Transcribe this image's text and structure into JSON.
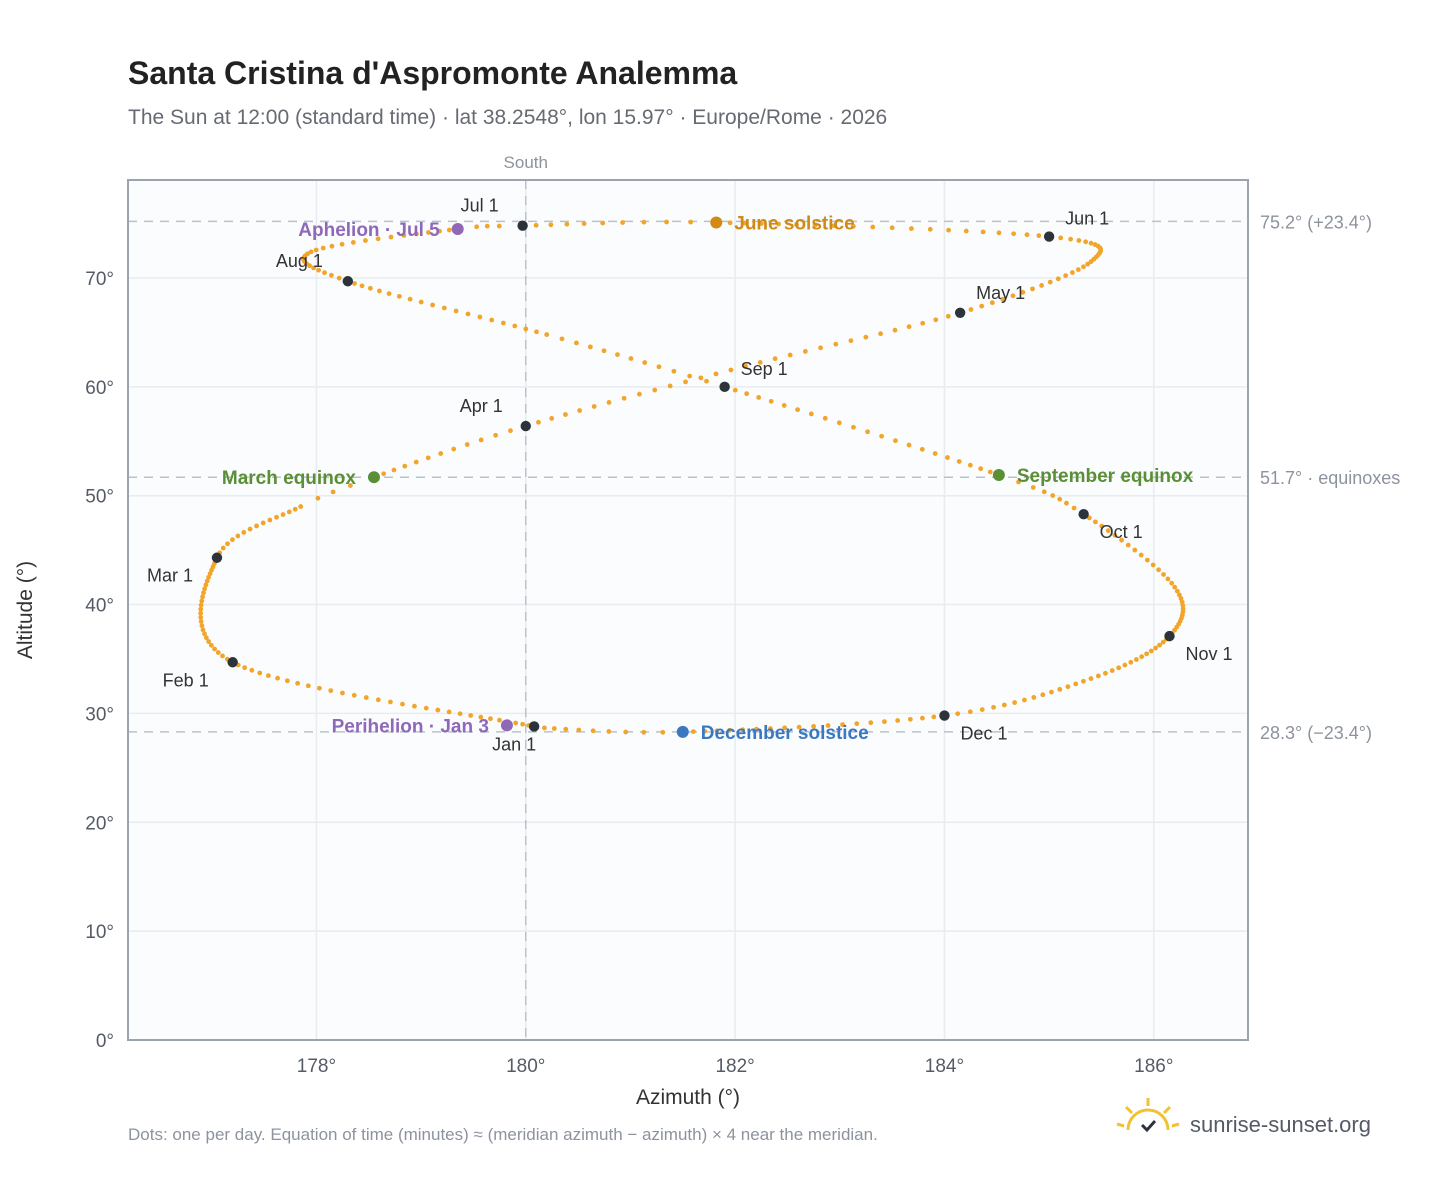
{
  "header": {
    "title": "Santa Cristina d'Aspromonte Analemma",
    "subtitle": "The Sun at 12:00 (standard time) · lat 38.2548°, lon 15.97° · Europe/Rome · 2026"
  },
  "footer": {
    "note": "Dots: one per day. Equation of time (minutes) ≈ (meridian azimuth − azimuth) × 4 near the meridian.",
    "brand": "sunrise-sunset.org",
    "brand_icon": "sun-check-icon"
  },
  "colors": {
    "path": "#f2a52a",
    "month_marker": "#2d333b",
    "solstice_june": "#d18a14",
    "solstice_december": "#3a78c2",
    "equinox": "#5a8f35",
    "apsis": "#8f68b8",
    "grid": "#e8ebef",
    "reference_line": "#b9c2cc",
    "frame": "#9aa3ae",
    "plot_bg": "#fafcfe"
  },
  "chart_data": {
    "type": "scatter",
    "xlabel": "Azimuth (°)",
    "ylabel": "Altitude (°)",
    "xlim": [
      176.2,
      186.9
    ],
    "ylim": [
      0,
      79
    ],
    "x_ticks": [
      178,
      180,
      182,
      184,
      186
    ],
    "x_tick_labels": [
      "178°",
      "180°",
      "182°",
      "184°",
      "186°"
    ],
    "y_ticks": [
      0,
      10,
      20,
      30,
      40,
      50,
      60,
      70
    ],
    "y_tick_labels": [
      "0°",
      "10°",
      "20°",
      "30°",
      "40°",
      "50°",
      "60°",
      "70°"
    ],
    "grid": true,
    "meridian": {
      "azimuth": 180,
      "label": "South"
    },
    "reference_lines": [
      {
        "altitude": 75.2,
        "label": "75.2° (+23.4°)"
      },
      {
        "altitude": 51.7,
        "label": "51.7° · equinoxes"
      },
      {
        "altitude": 28.3,
        "label": "28.3° (−23.4°)"
      }
    ],
    "path_points": [
      {
        "day": 1,
        "az": 180.08,
        "alt": 28.8
      },
      {
        "day": 32,
        "az": 177.2,
        "alt": 34.7
      },
      {
        "day": 60,
        "az": 177.05,
        "alt": 44.3
      },
      {
        "day": 75,
        "az": 177.85,
        "alt": 49.0
      },
      {
        "day": 79,
        "az": 178.55,
        "alt": 51.7
      },
      {
        "day": 91,
        "az": 180.0,
        "alt": 56.4
      },
      {
        "day": 106,
        "az": 182.1,
        "alt": 61.9
      },
      {
        "day": 121,
        "az": 184.15,
        "alt": 66.8
      },
      {
        "day": 137,
        "az": 185.4,
        "alt": 71.5
      },
      {
        "day": 152,
        "az": 185.0,
        "alt": 73.8
      },
      {
        "day": 172,
        "az": 181.82,
        "alt": 75.1
      },
      {
        "day": 182,
        "az": 179.97,
        "alt": 74.8
      },
      {
        "day": 186,
        "az": 179.35,
        "alt": 74.5
      },
      {
        "day": 200,
        "az": 177.95,
        "alt": 72.4
      },
      {
        "day": 213,
        "az": 178.3,
        "alt": 69.7
      },
      {
        "day": 232,
        "az": 180.2,
        "alt": 64.8
      },
      {
        "day": 244,
        "az": 181.9,
        "alt": 60.0
      },
      {
        "day": 266,
        "az": 184.52,
        "alt": 51.9
      },
      {
        "day": 274,
        "az": 185.33,
        "alt": 48.3
      },
      {
        "day": 290,
        "az": 186.2,
        "alt": 41.6
      },
      {
        "day": 305,
        "az": 186.15,
        "alt": 37.1
      },
      {
        "day": 320,
        "az": 185.4,
        "alt": 33.2
      },
      {
        "day": 335,
        "az": 184.0,
        "alt": 29.8
      },
      {
        "day": 355,
        "az": 181.5,
        "alt": 28.3
      },
      {
        "day": 365,
        "az": 180.1,
        "alt": 28.7
      }
    ],
    "month_markers": [
      {
        "label": "Jan 1",
        "az": 180.08,
        "alt": 28.8
      },
      {
        "label": "Feb 1",
        "az": 177.2,
        "alt": 34.7
      },
      {
        "label": "Mar 1",
        "az": 177.05,
        "alt": 44.3
      },
      {
        "label": "Apr 1",
        "az": 180.0,
        "alt": 56.4
      },
      {
        "label": "May 1",
        "az": 184.15,
        "alt": 66.8
      },
      {
        "label": "Jun 1",
        "az": 185.0,
        "alt": 73.8
      },
      {
        "label": "Jul 1",
        "az": 179.97,
        "alt": 74.8
      },
      {
        "label": "Aug 1",
        "az": 178.3,
        "alt": 69.7
      },
      {
        "label": "Sep 1",
        "az": 181.9,
        "alt": 60.0
      },
      {
        "label": "Oct 1",
        "az": 185.33,
        "alt": 48.3
      },
      {
        "label": "Nov 1",
        "az": 186.15,
        "alt": 37.1
      },
      {
        "label": "Dec 1",
        "az": 184.0,
        "alt": 29.8
      }
    ],
    "events": [
      {
        "label": "June solstice",
        "az": 181.82,
        "alt": 75.1,
        "kind": "solstice_june"
      },
      {
        "label": "December solstice",
        "az": 181.5,
        "alt": 28.3,
        "kind": "solstice_december"
      },
      {
        "label": "March equinox",
        "az": 178.55,
        "alt": 51.7,
        "kind": "equinox"
      },
      {
        "label": "September equinox",
        "az": 184.52,
        "alt": 51.9,
        "kind": "equinox"
      },
      {
        "label": "Aphelion · Jul 5",
        "az": 179.35,
        "alt": 74.5,
        "kind": "apsis"
      },
      {
        "label": "Perihelion · Jan 3",
        "az": 179.82,
        "alt": 28.9,
        "kind": "apsis"
      }
    ]
  }
}
